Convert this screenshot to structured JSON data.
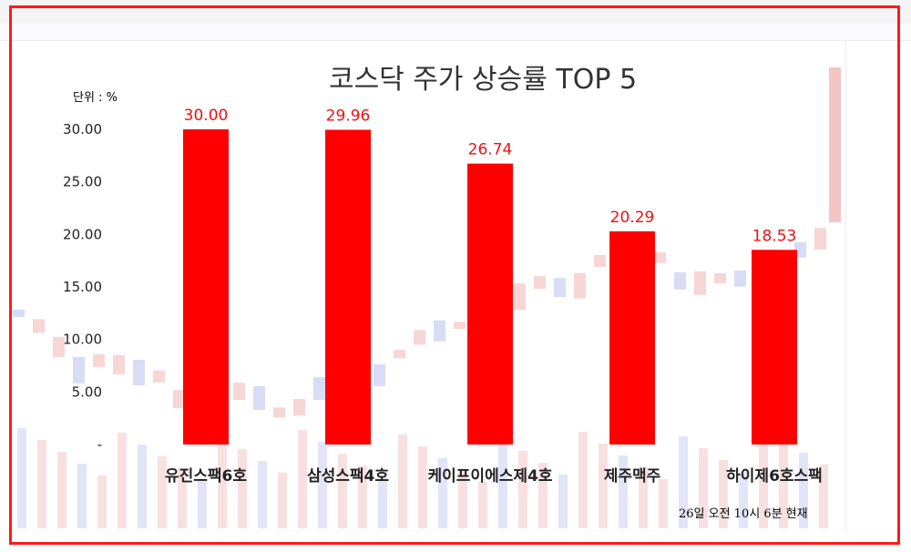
{
  "chart_data": {
    "type": "bar",
    "title": "코스닥 주가 상승률 TOP 5",
    "unit_label": "단위 : %",
    "categories": [
      "유진스팩6호",
      "삼성스팩4호",
      "케이프이에스제4호",
      "제주맥주",
      "하이제6호스팩"
    ],
    "values": [
      30.0,
      29.96,
      26.74,
      20.29,
      18.53
    ],
    "value_labels": [
      "30.00",
      "29.96",
      "26.74",
      "20.29",
      "18.53"
    ],
    "yticks": [
      "-",
      "5.00",
      "10.00",
      "15.00",
      "20.00",
      "25.00",
      "30.00"
    ],
    "ytick_values": [
      0,
      5,
      10,
      15,
      20,
      25,
      30
    ],
    "ylim": [
      0,
      30
    ],
    "bar_color": "#ff0000",
    "label_color": "#ee1111",
    "grid": false,
    "legend": "none",
    "footnote": "26일 오전 10시 6분 현재"
  },
  "frame_color": "#ff1a1a"
}
